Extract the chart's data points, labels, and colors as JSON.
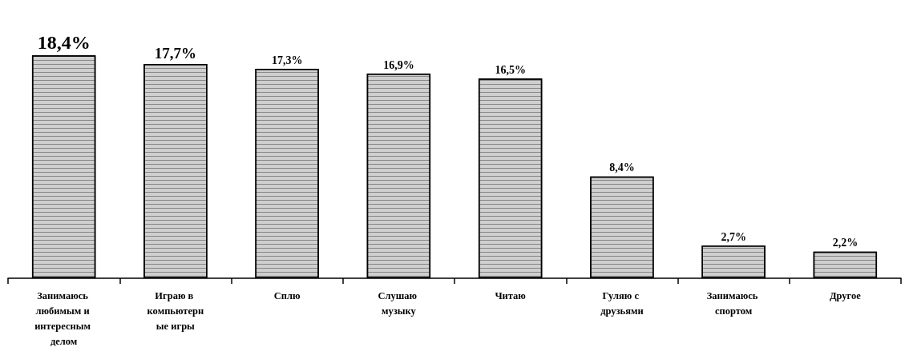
{
  "chart_data": {
    "type": "bar",
    "categories": [
      "Занимаюсь любимым и интересным делом",
      "Играю в компьютерные игры",
      "Сплю",
      "Слушаю музыку",
      "Читаю",
      "Гуляю с друзьями",
      "Занимаюсь спортом",
      "Другое"
    ],
    "values": [
      18.4,
      17.7,
      17.3,
      16.9,
      16.5,
      8.4,
      2.7,
      2.2
    ],
    "value_labels": [
      "18,4%",
      "17,7%",
      "17,3%",
      "16,9%",
      "16,5%",
      "8,4%",
      "2,7%",
      "2,2%"
    ],
    "color": "#cfcfcf"
  }
}
